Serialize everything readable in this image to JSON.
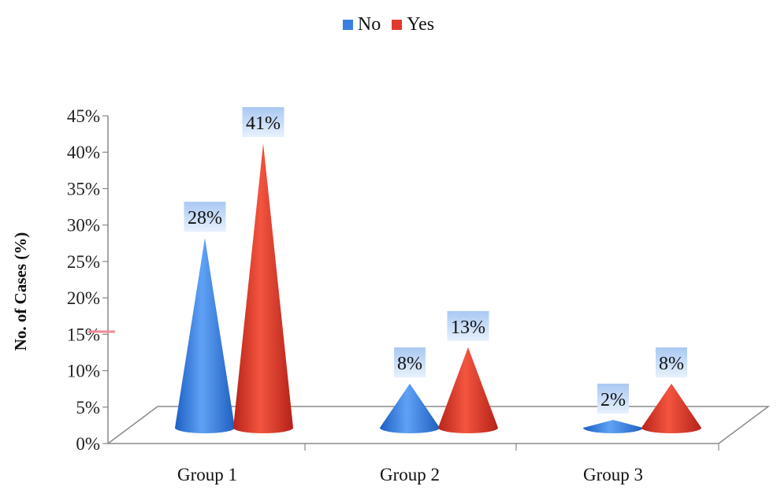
{
  "chart_data": {
    "type": "bar",
    "style": "3d-cone",
    "title": "",
    "categories": [
      "Group 1",
      "Group 2",
      "Group 3"
    ],
    "series": [
      {
        "name": "No",
        "color": "#3a7fe0",
        "values": [
          28,
          8,
          2
        ]
      },
      {
        "name": "Yes",
        "color": "#e03a2e",
        "values": [
          41,
          13,
          8
        ]
      }
    ],
    "data_labels": [
      [
        "28%",
        "8%",
        "2%"
      ],
      [
        "41%",
        "13%",
        "8%"
      ]
    ],
    "xlabel": "",
    "ylabel": "No. of Cases (%)",
    "yticks": [
      "0%",
      "5%",
      "10%",
      "15%",
      "20%",
      "25%",
      "30%",
      "35%",
      "40%",
      "45%"
    ],
    "ylim": [
      0,
      45
    ],
    "grid": false,
    "legend_position": "top"
  },
  "legend": {
    "items": [
      {
        "label": "No",
        "color": "#3a7fe0"
      },
      {
        "label": "Yes",
        "color": "#e03a2e"
      }
    ]
  },
  "axis": {
    "ylabel": "No. of Cases (%)"
  }
}
